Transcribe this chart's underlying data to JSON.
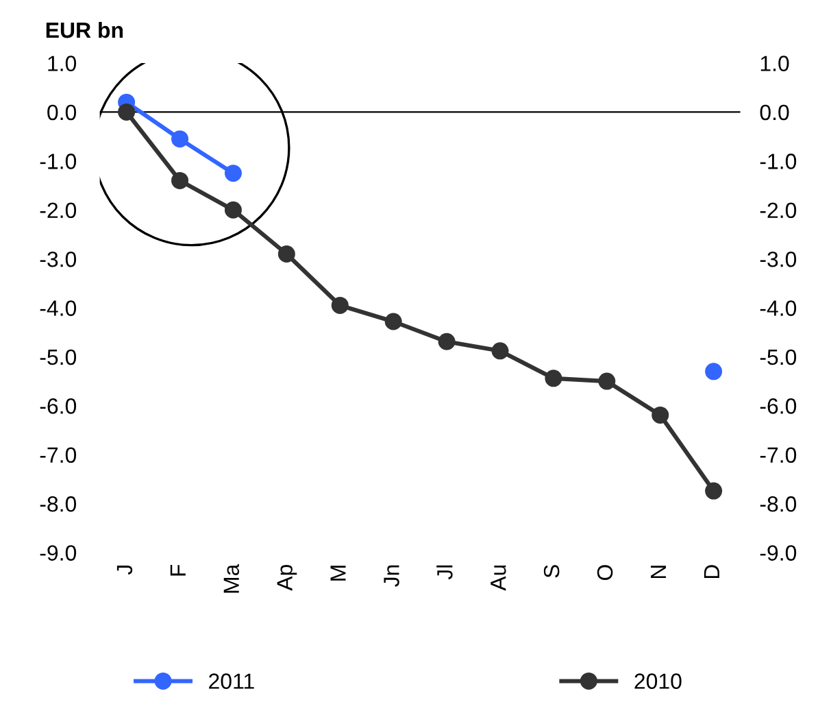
{
  "chart_data": {
    "type": "line",
    "ylabel": "EUR bn",
    "categories": [
      "J",
      "F",
      "Ma",
      "Ap",
      "M",
      "Jn",
      "Jl",
      "Au",
      "S",
      "O",
      "N",
      "D"
    ],
    "series": [
      {
        "name": "2011",
        "color": "#3366ff",
        "values": [
          0.2,
          -0.55,
          -1.25,
          null,
          null,
          null,
          null,
          null,
          null,
          null,
          null,
          -5.3
        ]
      },
      {
        "name": "2010",
        "color": "#333333",
        "values": [
          0.0,
          -1.4,
          -2.0,
          -2.9,
          -3.95,
          -4.28,
          -4.69,
          -4.88,
          -5.44,
          -5.5,
          -6.19,
          -7.74
        ]
      }
    ],
    "ylim": [
      -9,
      1
    ],
    "yticks": [
      {
        "value": 1,
        "label": "1.0"
      },
      {
        "value": 0,
        "label": "0.0"
      },
      {
        "value": -1,
        "label": "-1.0"
      },
      {
        "value": -2,
        "label": "-2.0"
      },
      {
        "value": -3,
        "label": "-3.0"
      },
      {
        "value": -4,
        "label": "-4.0"
      },
      {
        "value": -5,
        "label": "-5.0"
      },
      {
        "value": -6,
        "label": "-6.0"
      },
      {
        "value": -7,
        "label": "-7.0"
      },
      {
        "value": -8,
        "label": "-8.0"
      },
      {
        "value": -9,
        "label": "-9.0"
      }
    ],
    "y2lim": [
      -9,
      1
    ],
    "y2ticks": [
      {
        "value": 1,
        "label": "1.0"
      },
      {
        "value": 0,
        "label": "0.0"
      },
      {
        "value": -1,
        "label": "-1.0"
      },
      {
        "value": -2,
        "label": "-2.0"
      },
      {
        "value": -3,
        "label": "-3.0"
      },
      {
        "value": -4,
        "label": "-4.0"
      },
      {
        "value": -5,
        "label": "-5.0"
      },
      {
        "value": -6,
        "label": "-6.0"
      },
      {
        "value": -7,
        "label": "-7.0"
      },
      {
        "value": -8,
        "label": "-8.0"
      },
      {
        "value": -9,
        "label": "-9.0"
      }
    ],
    "ref_lines": [
      {
        "axis": "y",
        "value": 0.0,
        "color": "#000000"
      }
    ],
    "marker": "circle",
    "line_style": "solid",
    "legend": "bottom",
    "grid": false
  }
}
